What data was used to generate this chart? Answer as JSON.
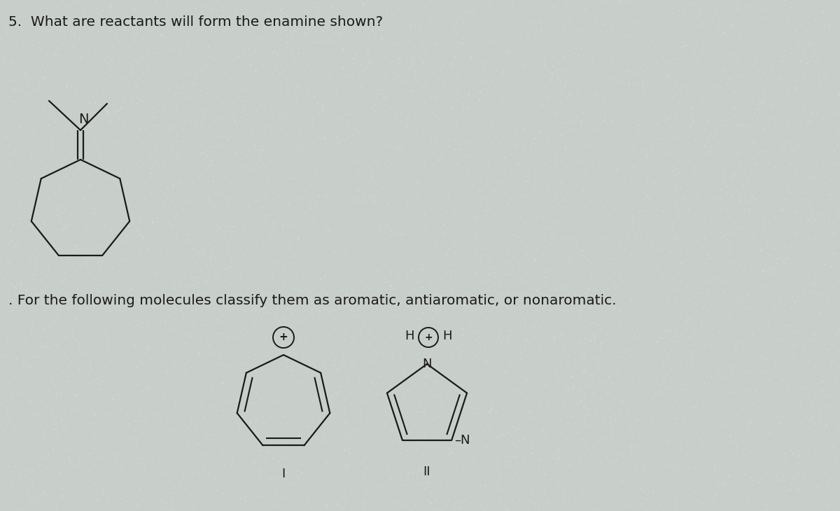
{
  "background_color": "#c8ceca",
  "title1": "5.  What are reactants will form the enamine shown?",
  "title2": ". For the following molecules classify them as aromatic, antiaromatic, or nonaromatic.",
  "label_I": "I",
  "label_II": "II",
  "text_color": "#1a1a1a",
  "font_size_title": 14.5,
  "font_size_label": 13,
  "font_size_atom": 12
}
